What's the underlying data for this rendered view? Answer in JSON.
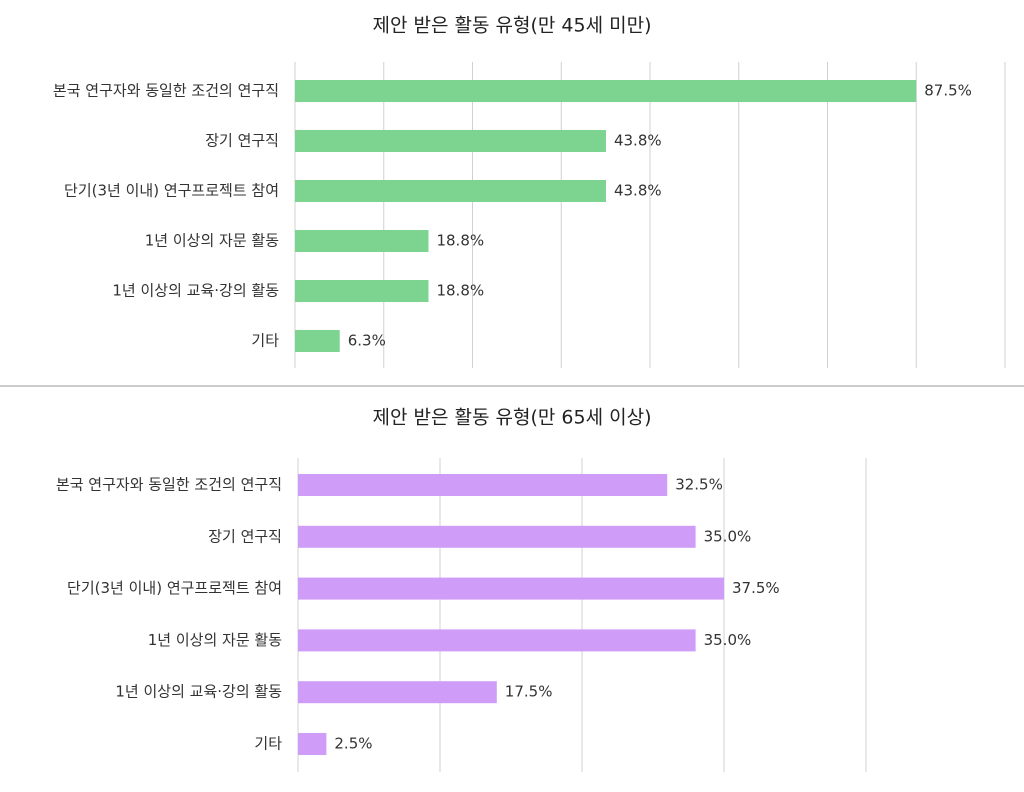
{
  "chart_data": [
    {
      "type": "bar",
      "orientation": "horizontal",
      "title": "제안 받은 활동 유형(만 45세 미만)",
      "categories": [
        "본국 연구자와 동일한 조건의 연구직",
        "장기 연구직",
        "단기(3년 이내) 연구프로젝트 참여",
        "1년 이상의 자문 활동",
        "1년 이상의 교육·강의 활동",
        "기타"
      ],
      "values": [
        87.5,
        43.8,
        43.8,
        18.8,
        18.8,
        6.3
      ],
      "value_labels": [
        "87.5%",
        "43.8%",
        "43.8%",
        "18.8%",
        "18.8%",
        "6.3%"
      ],
      "color": "#7dd491",
      "xlim": [
        0,
        100
      ],
      "xticks": [
        0,
        12.5,
        25,
        37.5,
        50,
        62.5,
        75,
        87.5,
        100
      ],
      "grid": true
    },
    {
      "type": "bar",
      "orientation": "horizontal",
      "title": "제안 받은 활동 유형(만 65세 이상)",
      "categories": [
        "본국 연구자와 동일한 조건의 연구직",
        "장기 연구직",
        "단기(3년 이내) 연구프로젝트 참여",
        "1년 이상의 자문 활동",
        "1년 이상의 교육·강의 활동",
        "기타"
      ],
      "values": [
        32.5,
        35.0,
        37.5,
        35.0,
        17.5,
        2.5
      ],
      "value_labels": [
        "32.5%",
        "35.0%",
        "37.5%",
        "35.0%",
        "17.5%",
        "2.5%"
      ],
      "color": "#cf9cf7",
      "xlim": [
        0,
        50
      ],
      "xticks": [
        0,
        12.5,
        25,
        37.5,
        50
      ],
      "grid": true
    }
  ]
}
